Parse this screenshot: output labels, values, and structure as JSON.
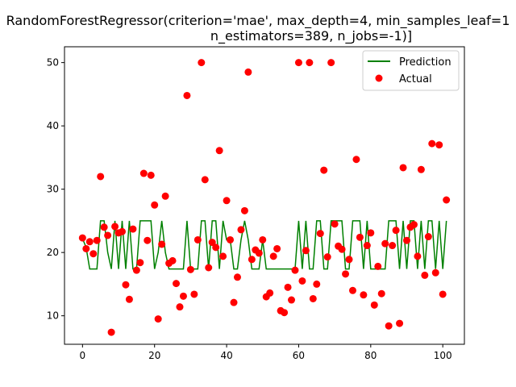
{
  "chart_data": {
    "type": "line+scatter",
    "title_lines": [
      "RandomForestRegressor(criterion='mae', max_depth=4, min_samples_leaf=1",
      "n_estimators=389, n_jobs=-1)]"
    ],
    "xlim": [
      -5,
      106
    ],
    "ylim": [
      5.5,
      52.5
    ],
    "xticks": [
      0,
      20,
      40,
      60,
      80,
      100
    ],
    "yticks": [
      10,
      20,
      30,
      40,
      50
    ],
    "legend_position": "top-right",
    "series": [
      {
        "name": "Prediction",
        "type": "line",
        "color": "#008000",
        "x": [
          0,
          1,
          2,
          3,
          4,
          5,
          6,
          7,
          8,
          9,
          10,
          11,
          12,
          13,
          14,
          15,
          16,
          17,
          18,
          19,
          20,
          21,
          22,
          23,
          24,
          25,
          26,
          27,
          28,
          29,
          30,
          31,
          32,
          33,
          34,
          35,
          36,
          37,
          38,
          39,
          40,
          41,
          42,
          43,
          44,
          45,
          46,
          47,
          48,
          49,
          50,
          51,
          52,
          53,
          54,
          55,
          56,
          57,
          58,
          59,
          60,
          61,
          62,
          63,
          64,
          65,
          66,
          67,
          68,
          69,
          70,
          71,
          72,
          73,
          74,
          75,
          76,
          77,
          78,
          79,
          80,
          81,
          82,
          83,
          84,
          85,
          86,
          87,
          88,
          89,
          90,
          91,
          92,
          93,
          94,
          95,
          96,
          97,
          98,
          99,
          100,
          101
        ],
        "values": [
          22.2,
          20.8,
          17.4,
          17.4,
          17.4,
          25.0,
          25.0,
          20.0,
          17.4,
          25.0,
          17.4,
          25.0,
          17.4,
          25.0,
          17.4,
          17.4,
          25.0,
          25.0,
          25.0,
          25.0,
          17.4,
          20.0,
          25.0,
          20.0,
          17.4,
          17.4,
          17.4,
          17.4,
          17.4,
          25.0,
          17.4,
          17.4,
          17.4,
          25.0,
          25.0,
          17.4,
          25.0,
          25.0,
          17.4,
          25.0,
          22.0,
          22.0,
          17.4,
          17.4,
          22.0,
          25.0,
          22.0,
          17.4,
          17.4,
          17.4,
          22.0,
          17.4,
          17.4,
          17.4,
          17.4,
          17.4,
          17.4,
          17.4,
          17.4,
          17.4,
          25.0,
          17.4,
          25.0,
          17.4,
          17.4,
          25.0,
          25.0,
          17.4,
          17.4,
          25.0,
          25.0,
          25.0,
          25.0,
          17.4,
          17.4,
          25.0,
          25.0,
          25.0,
          17.4,
          25.0,
          17.4,
          17.4,
          17.4,
          17.4,
          17.4,
          25.0,
          25.0,
          25.0,
          17.4,
          25.0,
          17.4,
          25.0,
          25.0,
          17.4,
          25.0,
          17.4,
          25.0,
          25.0,
          17.4,
          25.0,
          17.4,
          25.0
        ]
      },
      {
        "name": "Actual",
        "type": "scatter",
        "color": "#ff0000",
        "x": [
          0,
          1,
          2,
          3,
          4,
          5,
          6,
          7,
          8,
          9,
          10,
          11,
          12,
          13,
          14,
          15,
          16,
          17,
          18,
          19,
          20,
          21,
          22,
          23,
          24,
          25,
          26,
          27,
          28,
          29,
          30,
          31,
          32,
          33,
          34,
          35,
          36,
          37,
          38,
          39,
          40,
          41,
          42,
          43,
          44,
          45,
          46,
          47,
          48,
          49,
          50,
          51,
          52,
          53,
          54,
          55,
          56,
          57,
          58,
          59,
          60,
          61,
          62,
          63,
          64,
          65,
          66,
          67,
          68,
          69,
          70,
          71,
          72,
          73,
          74,
          75,
          76,
          77,
          78,
          79,
          80,
          81,
          82,
          83,
          84,
          85,
          86,
          87,
          88,
          89,
          90,
          91,
          92,
          93,
          94,
          95,
          96,
          97,
          98,
          99,
          100,
          101
        ],
        "values": [
          22.3,
          20.6,
          21.7,
          19.8,
          21.9,
          32.0,
          24.0,
          22.7,
          7.4,
          24.1,
          23.1,
          23.3,
          14.9,
          12.6,
          23.7,
          17.2,
          18.4,
          32.5,
          21.9,
          32.2,
          27.5,
          9.5,
          21.3,
          28.9,
          18.3,
          18.7,
          15.1,
          11.4,
          13.1,
          44.8,
          17.3,
          13.4,
          22.0,
          50.0,
          31.5,
          17.6,
          21.6,
          20.8,
          36.1,
          19.4,
          28.2,
          22.0,
          12.1,
          16.1,
          23.6,
          26.6,
          48.5,
          18.9,
          20.4,
          19.9,
          22.0,
          13.0,
          13.6,
          19.4,
          20.6,
          10.8,
          10.5,
          14.5,
          12.5,
          17.2,
          50.0,
          15.5,
          20.3,
          50.0,
          12.7,
          15.0,
          23.0,
          33.0,
          19.3,
          50.0,
          24.5,
          21.0,
          20.5,
          16.6,
          18.9,
          14.0,
          34.7,
          22.4,
          13.3,
          21.1,
          23.1,
          11.7,
          17.8,
          13.5,
          21.4,
          8.4,
          21.1,
          23.5,
          8.8,
          33.4,
          21.9,
          24.0,
          24.4,
          19.4,
          33.1,
          16.4,
          22.5,
          37.2,
          16.8,
          37.0,
          13.4,
          28.3
        ]
      }
    ]
  }
}
